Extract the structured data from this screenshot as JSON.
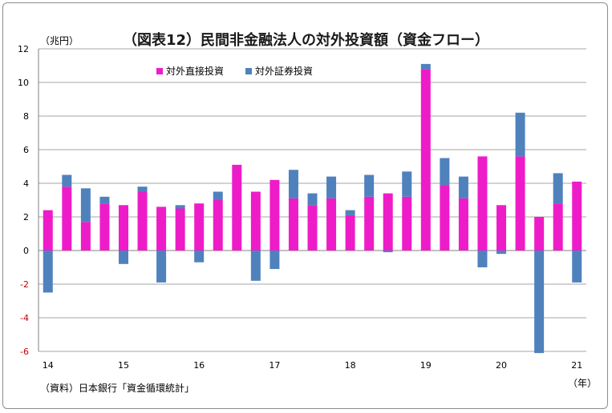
{
  "chart_data": {
    "type": "bar",
    "stacked": true,
    "title": "（図表12）民間非金融法人の対外投資額（資金フロー）",
    "ylabel": "（兆円）",
    "xlabel": "（年）",
    "source": "（資料）日本銀行「資金循環統計」",
    "ylim": [
      -6,
      12
    ],
    "yticks": [
      12,
      10,
      8,
      6,
      4,
      2,
      0,
      -2,
      -4,
      -6
    ],
    "xtick_labels": [
      {
        "index": 0,
        "label": "14"
      },
      {
        "index": 4,
        "label": "15"
      },
      {
        "index": 8,
        "label": "16"
      },
      {
        "index": 12,
        "label": "17"
      },
      {
        "index": 16,
        "label": "18"
      },
      {
        "index": 20,
        "label": "19"
      },
      {
        "index": 24,
        "label": "20"
      },
      {
        "index": 28,
        "label": "21"
      }
    ],
    "series": [
      {
        "name": "対外直接投資",
        "color": "#ee1cc8",
        "values": [
          2.4,
          3.8,
          1.7,
          2.8,
          2.7,
          3.5,
          2.6,
          2.5,
          2.8,
          3.0,
          5.1,
          3.5,
          4.2,
          3.1,
          2.7,
          3.1,
          2.1,
          3.2,
          3.4,
          3.2,
          10.8,
          3.9,
          3.1,
          5.6,
          2.7,
          5.6,
          2.0,
          2.8,
          4.1
        ]
      },
      {
        "name": "対外証券投資",
        "color": "#4f81bd",
        "values": [
          -2.5,
          0.7,
          2.0,
          0.4,
          -0.8,
          0.3,
          -1.9,
          0.2,
          -0.7,
          0.5,
          0.0,
          -1.8,
          -1.1,
          1.7,
          0.7,
          1.3,
          0.3,
          1.3,
          -0.1,
          1.5,
          0.3,
          1.6,
          1.3,
          -1.0,
          -0.2,
          2.6,
          -6.1,
          1.8,
          -1.9
        ]
      }
    ],
    "grid": true,
    "legend_position": "top-left",
    "negative_tick_color": "#c00000"
  }
}
